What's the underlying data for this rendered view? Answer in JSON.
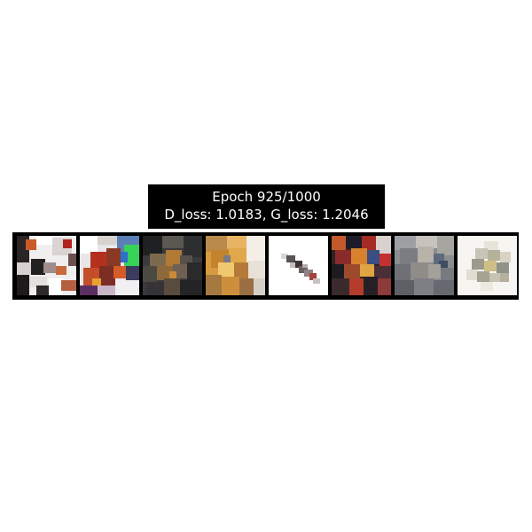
{
  "figure": {
    "title_line1": "Epoch 925/1000",
    "title_line2": "D_loss: 1.0183, G_loss: 1.2046"
  },
  "samples": [
    {
      "description": "generated sample 1"
    },
    {
      "description": "generated sample 2"
    },
    {
      "description": "generated sample 3"
    },
    {
      "description": "generated sample 4"
    },
    {
      "description": "generated sample 5"
    },
    {
      "description": "generated sample 6"
    },
    {
      "description": "generated sample 7"
    },
    {
      "description": "generated sample 8"
    }
  ]
}
